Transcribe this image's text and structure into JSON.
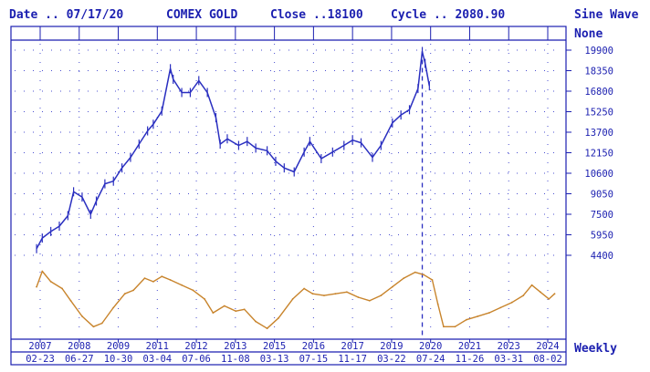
{
  "header": {
    "date": "Date .. 07/17/20",
    "symbol": "COMEX GOLD",
    "close": "Close ..18100",
    "cycle": "Cycle .. 2080.90",
    "indicator": "Sine Wave",
    "indicator_sub": "None"
  },
  "footer": {
    "period": "Weekly"
  },
  "colors": {
    "frame": "#1b1fb0",
    "price": "#2a2fc0",
    "cycle": "#c8842c",
    "grid": "#4a4fd0"
  },
  "chart_data": [
    {
      "type": "line",
      "name": "price",
      "y_ticks": [
        19900,
        18350,
        16800,
        15250,
        13700,
        12150,
        10600,
        9050,
        7500,
        5950,
        4400
      ],
      "ylim": [
        4400,
        19900
      ],
      "x": [
        2006.9,
        2007.1,
        2007.4,
        2007.7,
        2008.0,
        2008.2,
        2008.5,
        2008.8,
        2009.0,
        2009.3,
        2009.6,
        2009.9,
        2010.2,
        2010.5,
        2010.8,
        2011.0,
        2011.3,
        2011.6,
        2011.7,
        2012.0,
        2012.3,
        2012.6,
        2012.9,
        2013.2,
        2013.35,
        2013.6,
        2014.0,
        2014.3,
        2014.6,
        2015.0,
        2015.3,
        2015.6,
        2015.95,
        2016.3,
        2016.5,
        2016.9,
        2017.3,
        2017.7,
        2018.0,
        2018.3,
        2018.7,
        2019.0,
        2019.4,
        2019.7,
        2020.0,
        2020.3,
        2020.45,
        2020.55,
        2020.7
      ],
      "y": [
        4900,
        5700,
        6200,
        6600,
        7400,
        9200,
        8800,
        7500,
        8500,
        9800,
        10000,
        11000,
        11800,
        12800,
        13800,
        14300,
        15300,
        18500,
        17700,
        16700,
        16700,
        17600,
        16700,
        14800,
        12800,
        13200,
        12700,
        13000,
        12500,
        12300,
        11500,
        11000,
        10700,
        12200,
        13000,
        11700,
        12200,
        12700,
        13100,
        12900,
        11800,
        12700,
        14400,
        15000,
        15400,
        17000,
        19800,
        18900,
        17200
      ]
    },
    {
      "type": "line",
      "name": "cycle",
      "x_ticks_top": [
        "2007",
        "2008",
        "2009",
        "2011",
        "2012",
        "2013",
        "2015",
        "2016",
        "2017",
        "2019",
        "2020",
        "2021",
        "2023",
        "2024"
      ],
      "x_ticks_bottom": [
        "02-23",
        "06-27",
        "10-30",
        "03-04",
        "07-06",
        "11-08",
        "03-13",
        "07-15",
        "11-17",
        "03-22",
        "07-24",
        "11-26",
        "03-31",
        "08-02"
      ],
      "x": [
        2006.9,
        2007.1,
        2007.4,
        2007.8,
        2008.1,
        2008.5,
        2008.9,
        2009.2,
        2009.6,
        2010.0,
        2010.3,
        2010.7,
        2011.0,
        2011.3,
        2011.6,
        2012.0,
        2012.4,
        2012.8,
        2013.1,
        2013.5,
        2013.9,
        2014.2,
        2014.6,
        2015.0,
        2015.4,
        2015.9,
        2016.3,
        2016.6,
        2017.0,
        2017.4,
        2017.8,
        2018.2,
        2018.6,
        2019.0,
        2019.4,
        2019.8,
        2020.2,
        2020.5,
        2020.8,
        2021.0,
        2021.2,
        2021.6,
        2022.0,
        2022.4,
        2022.8,
        2023.2,
        2023.6,
        2024.0,
        2024.3,
        2024.6,
        2024.9,
        2025.1
      ],
      "y": [
        0.3,
        0.75,
        0.45,
        0.25,
        -0.1,
        -0.55,
        -0.85,
        -0.75,
        -0.3,
        0.1,
        0.2,
        0.55,
        0.45,
        0.6,
        0.5,
        0.35,
        0.2,
        -0.05,
        -0.45,
        -0.25,
        -0.4,
        -0.35,
        -0.7,
        -0.9,
        -0.6,
        -0.05,
        0.25,
        0.1,
        0.05,
        0.1,
        0.15,
        0.0,
        -0.1,
        0.05,
        0.3,
        0.55,
        0.72,
        0.65,
        0.5,
        -0.2,
        -0.85,
        -0.85,
        -0.65,
        -0.55,
        -0.45,
        -0.3,
        -0.15,
        0.05,
        0.35,
        0.15,
        -0.05,
        0.1
      ],
      "ylim": [
        -1,
        1
      ]
    }
  ]
}
